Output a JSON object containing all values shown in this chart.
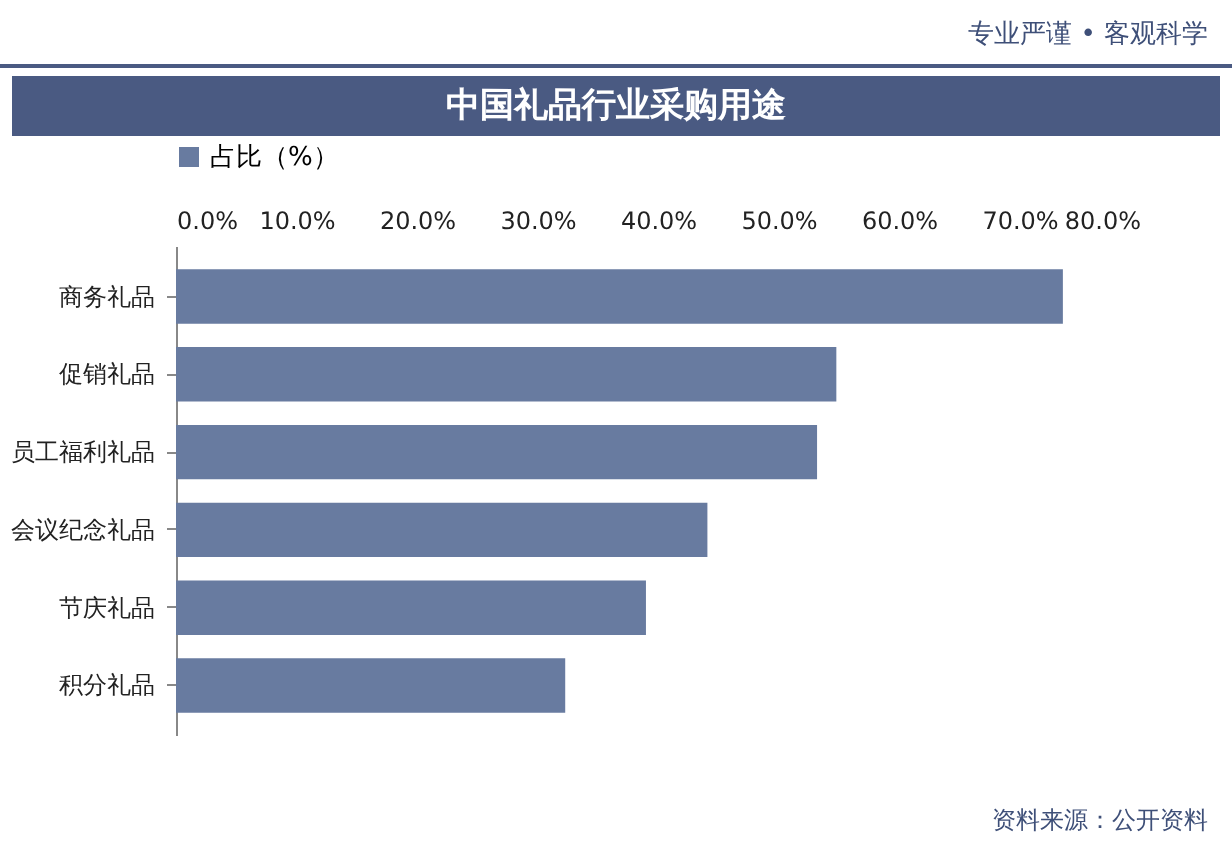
{
  "chart_data": {
    "type": "bar",
    "orientation": "horizontal",
    "title": "中国礼品行业采购用途",
    "categories": [
      "商务礼品",
      "促销礼品",
      "员工福利礼品",
      "会议纪念礼品",
      "节庆礼品",
      "积分礼品"
    ],
    "series": [
      {
        "name": "占比（%）",
        "color": "#687ba0",
        "values": [
          73.6,
          54.8,
          53.2,
          44.1,
          39.0,
          32.3
        ]
      }
    ],
    "xlim": [
      0,
      80
    ],
    "xticks": [
      {
        "value": 0,
        "label": "0.0%"
      },
      {
        "value": 10,
        "label": "10.0%"
      },
      {
        "value": 20,
        "label": "20.0%"
      },
      {
        "value": 30,
        "label": "30.0%"
      },
      {
        "value": 40,
        "label": "40.0%"
      },
      {
        "value": 50,
        "label": "50.0%"
      },
      {
        "value": 60,
        "label": "60.0%"
      },
      {
        "value": 70,
        "label": "70.0%"
      },
      {
        "value": 80,
        "label": "80.0%"
      }
    ],
    "grid": false,
    "legend": "top",
    "annotations": [
      "专业严谨 • 客观科学",
      "资料来源：公开资料"
    ]
  }
}
